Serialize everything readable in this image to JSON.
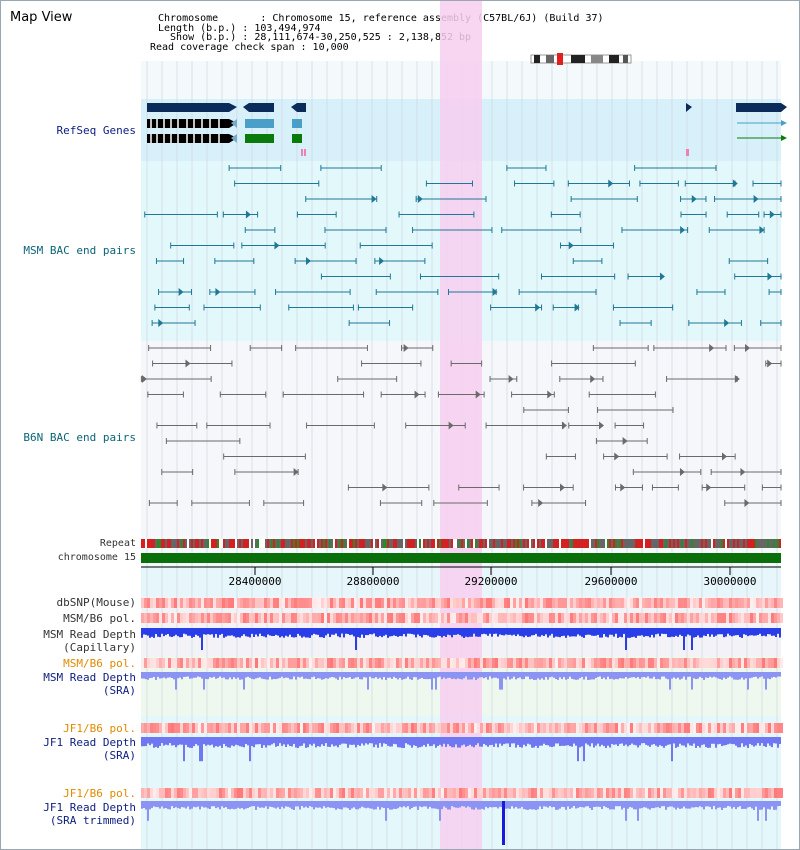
{
  "header": {
    "title": "Map View",
    "chromosome_line": "Chromosome       : Chromosome 15, reference assembly (C57BL/6J) (Build 37)",
    "length_line": "Length (b.p.) : 103,494,974",
    "show_line": "  Show (b.p.) : 28,111,674-30,250,525 : 2,138,852 bp",
    "coverage_line": "Read coverage check span : 10,000"
  },
  "tracks": {
    "refseq": "RefSeq Genes",
    "msm_bac": "MSM BAC end pairs",
    "b6n_bac": "B6N BAC end pairs",
    "repeat": "Repeat",
    "chrom": "chromosome 15",
    "dbsnp": "dbSNP(Mouse)",
    "msm_b6_pol_1": "MSM/B6 pol.",
    "msm_depth_cap_1": "MSM Read Depth",
    "msm_depth_cap_2": "(Capillary)",
    "msm_b6_pol_2": "MSM/B6 pol.",
    "msm_depth_sra_1": "MSM Read Depth",
    "msm_depth_sra_2": "(SRA)",
    "jf1_pol_1": "JF1/B6 pol.",
    "jf1_depth_1": "JF1 Read Depth",
    "jf1_depth_2": "(SRA)",
    "jf1_pol_2": "JF1/B6 pol.",
    "jf1_trim_1": "JF1 Read Depth",
    "jf1_trim_2": "(SRA trimmed)"
  },
  "axis": {
    "ticks": [
      "28400000",
      "28800000",
      "29200000",
      "29600000",
      "30000000"
    ]
  },
  "colors": {
    "navy_label": "#102080",
    "teal_label": "#0b6478",
    "orange_label": "#e08a00",
    "highlight": "#f7d0f0",
    "chromosome_bar": "#0a6e0a"
  }
}
